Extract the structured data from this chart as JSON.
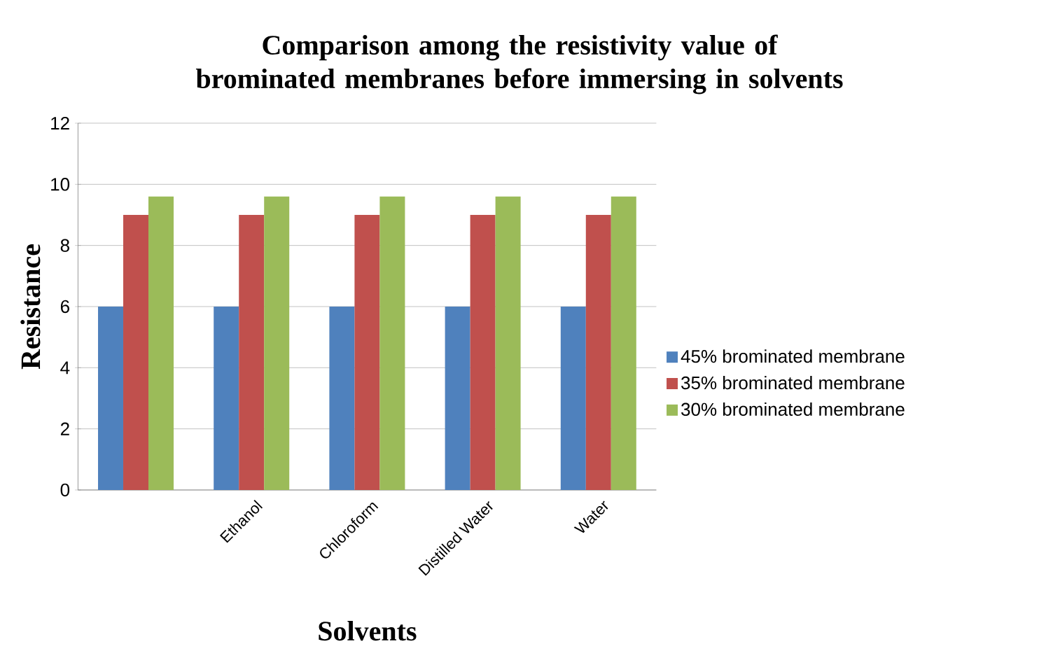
{
  "chart_data": {
    "type": "bar",
    "title": "Comparison among the resistivity value of brominated membranes before immersing in solvents",
    "xlabel": "Solvents",
    "ylabel": "Resistance",
    "categories": [
      null,
      "Ethanol",
      "Chloroform",
      "Distilled Water",
      "Water"
    ],
    "series": [
      {
        "name": "45%  brominated membrane",
        "color": "#4f81bd",
        "values": [
          6,
          6,
          6,
          6,
          6
        ]
      },
      {
        "name": "35% brominated membrane",
        "color": "#c0504d",
        "values": [
          9,
          9,
          9,
          9,
          9
        ]
      },
      {
        "name": "30% brominated membrane",
        "color": "#9bbb59",
        "values": [
          9.6,
          9.6,
          9.6,
          9.6,
          9.6
        ]
      }
    ],
    "ylim": [
      0,
      12
    ],
    "yticks": [
      0,
      2,
      4,
      6,
      8,
      10,
      12
    ],
    "grid": "y",
    "legend": "right"
  }
}
